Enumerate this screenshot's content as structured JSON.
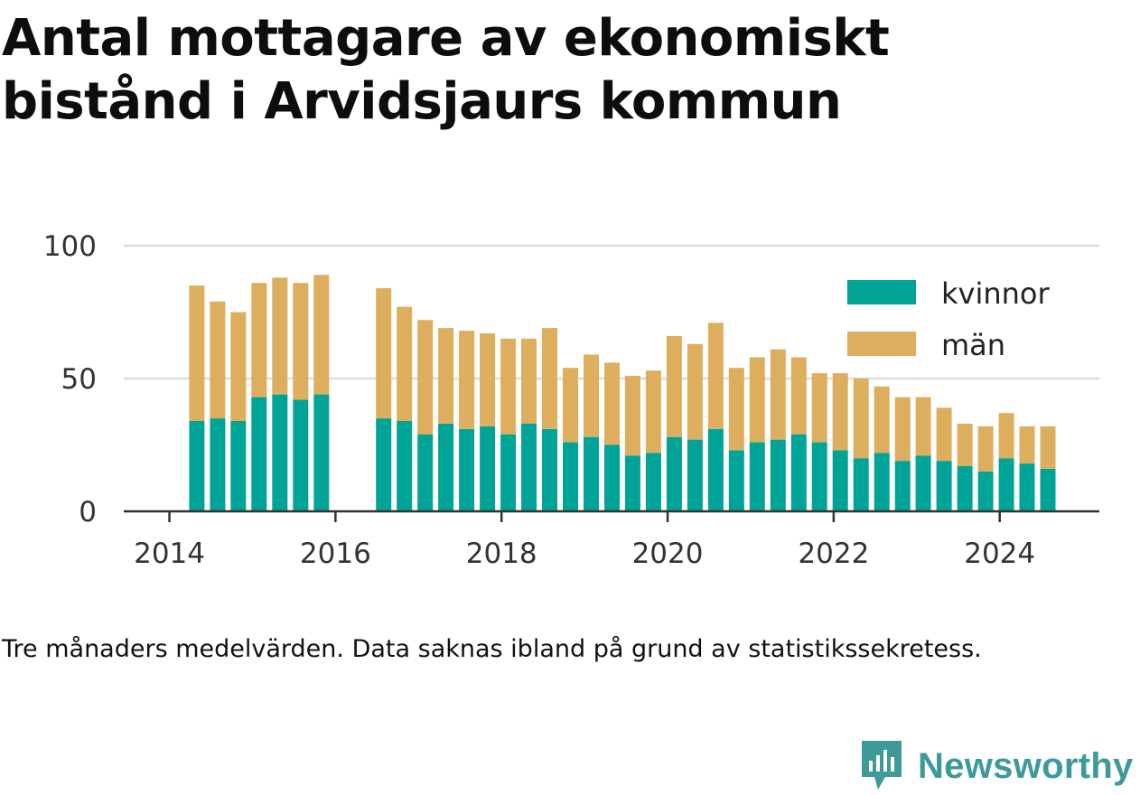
{
  "title": "Antal mottagare av ekonomiskt bistånd i Arvidsjaurs kommun",
  "note": "Tre månaders medelvärden. Data saknas ibland på grund av statistikssekretess.",
  "brand": {
    "name": "Newsworthy",
    "icon": "newsworthy-logo-icon"
  },
  "colors": {
    "kvinnor": "#00a496",
    "man": "#dcae5e",
    "grid": "#dddddd",
    "axis": "#333333"
  },
  "chart_data": {
    "type": "bar",
    "stacked": true,
    "ylim": [
      0,
      100
    ],
    "y_ticks": [
      0,
      50,
      100
    ],
    "x_ticks": [
      2014,
      2016,
      2018,
      2020,
      2022,
      2024
    ],
    "xlim": [
      2013.45,
      2025.2
    ],
    "grid": true,
    "legend_position": "top-right",
    "x": [
      2014.33,
      2014.58,
      2014.83,
      2015.08,
      2015.33,
      2015.58,
      2015.83,
      2016.58,
      2016.83,
      2017.08,
      2017.33,
      2017.58,
      2017.83,
      2018.08,
      2018.33,
      2018.58,
      2018.83,
      2019.08,
      2019.33,
      2019.58,
      2019.83,
      2020.08,
      2020.33,
      2020.58,
      2020.83,
      2021.08,
      2021.33,
      2021.58,
      2021.83,
      2022.08,
      2022.33,
      2022.58,
      2022.83,
      2023.08,
      2023.33,
      2023.58,
      2023.83,
      2024.08,
      2024.33,
      2024.58
    ],
    "series": [
      {
        "name": "kvinnor",
        "values": [
          34,
          35,
          34,
          43,
          44,
          42,
          44,
          35,
          34,
          29,
          33,
          31,
          32,
          29,
          33,
          31,
          26,
          28,
          25,
          21,
          22,
          28,
          27,
          31,
          23,
          26,
          27,
          29,
          26,
          23,
          20,
          22,
          19,
          21,
          19,
          17,
          15,
          20,
          18,
          16
        ]
      },
      {
        "name": "män",
        "values": [
          51,
          44,
          41,
          43,
          44,
          44,
          45,
          49,
          43,
          43,
          36,
          37,
          35,
          36,
          32,
          38,
          28,
          31,
          31,
          30,
          31,
          38,
          36,
          40,
          31,
          32,
          34,
          29,
          26,
          29,
          30,
          25,
          24,
          22,
          20,
          16,
          17,
          17,
          14,
          16
        ]
      }
    ]
  }
}
